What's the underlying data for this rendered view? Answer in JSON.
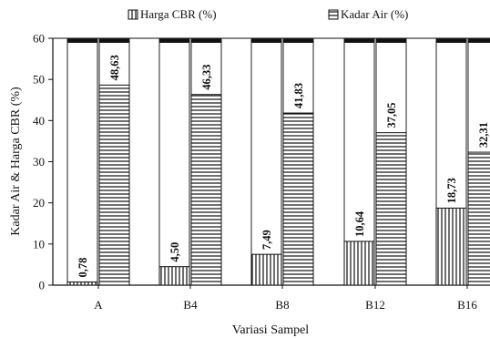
{
  "chart_data": {
    "type": "bar",
    "categories": [
      "A",
      "B4",
      "B8",
      "B12",
      "B16"
    ],
    "series": [
      {
        "name": "Harga CBR (%)",
        "values": [
          0.78,
          4.5,
          7.49,
          10.64,
          18.73
        ],
        "labels": [
          "0,78",
          "4,50",
          "7,49",
          "10,64",
          "18,73"
        ],
        "pattern": "vertical-lines"
      },
      {
        "name": "Kadar Air (%)",
        "values": [
          48.63,
          46.33,
          41.83,
          37.05,
          32.31
        ],
        "labels": [
          "48,63",
          "46,33",
          "41,83",
          "37,05",
          "32,31"
        ],
        "pattern": "horizontal-lines"
      }
    ],
    "title": "",
    "xlabel": "Variasi Sampel",
    "ylabel": "Kadar Air & Harga CBR (%)",
    "ylim": [
      0,
      60
    ],
    "yticks": [
      0,
      10,
      20,
      30,
      40,
      50,
      60
    ],
    "grid": false,
    "legend_position": "top"
  }
}
